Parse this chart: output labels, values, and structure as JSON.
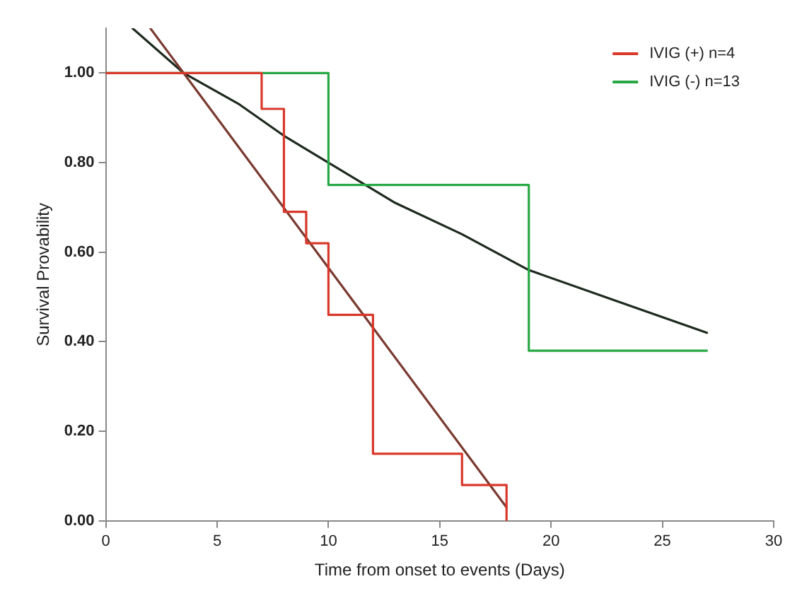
{
  "chart_data": {
    "type": "step",
    "xlabel": "Time from onset to events (Days)",
    "ylabel": "Survival Provability",
    "xlim": [
      0,
      30
    ],
    "xticks": [
      0,
      5,
      10,
      15,
      20,
      25,
      30
    ],
    "ylim": [
      0,
      1.1
    ],
    "yticks": [
      {
        "value": 0,
        "label": "0.00"
      },
      {
        "value": 0.2,
        "label": "0.20"
      },
      {
        "value": 0.4,
        "label": "0.40"
      },
      {
        "value": 0.6,
        "label": "0.60"
      },
      {
        "value": 0.8,
        "label": "0.80"
      },
      {
        "value": 1,
        "label": "1.00"
      }
    ],
    "grid": false,
    "legend": "top right",
    "marker": "none",
    "series": [
      {
        "name": "IVIG (+) n=4",
        "color": "#d9382a",
        "x": [
          0,
          7,
          8,
          9,
          10,
          12,
          16,
          18
        ],
        "values": [
          1,
          0.92,
          0.69,
          0.62,
          0.46,
          0.15,
          0.08,
          0
        ]
      },
      {
        "name": "IVIG (-) n=13",
        "color": "#27a844",
        "x": [
          0,
          10,
          19,
          27
        ],
        "values": [
          1,
          0.75,
          0.38,
          0.38
        ]
      },
      {
        "type": "line",
        "color": "#7a3a30",
        "x": [
          2,
          18
        ],
        "values": [
          1.1,
          0.03
        ]
      },
      {
        "type": "line",
        "color": "#1e2a1e",
        "x": [
          1.2,
          3.5,
          6,
          8,
          10,
          13,
          16,
          19,
          23,
          27
        ],
        "values": [
          1.1,
          1,
          0.93,
          0.86,
          0.8,
          0.71,
          0.64,
          0.56,
          0.49,
          0.42
        ]
      }
    ]
  }
}
